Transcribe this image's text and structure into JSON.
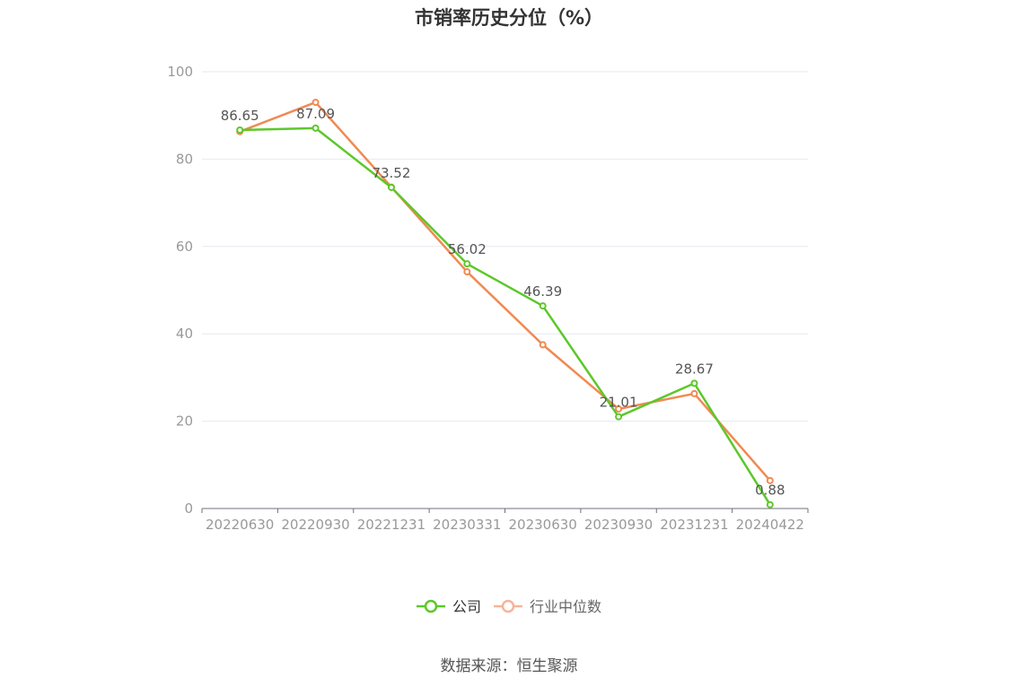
{
  "title": "市销率历史分位（%）",
  "source": "数据来源：恒生聚源",
  "colors": {
    "company": "#5cc82a",
    "industry": "#f08a52",
    "industry_legend": "#f5b59a",
    "grid": "#e6e9f0",
    "axis": "#6e7079",
    "tick_text": "#999999",
    "label_text": "#555555"
  },
  "chart_data": {
    "type": "line",
    "categories": [
      "20220630",
      "20220930",
      "20221231",
      "20230331",
      "20230630",
      "20230930",
      "20231231",
      "20240422"
    ],
    "ylim": [
      0,
      100
    ],
    "yticks": [
      0,
      20,
      40,
      60,
      80,
      100
    ],
    "grid": true,
    "legend_position": "bottom",
    "series": [
      {
        "name": "公司",
        "values": [
          86.65,
          87.09,
          73.52,
          56.02,
          46.39,
          21.01,
          28.67,
          0.88
        ],
        "labels": [
          "86.65",
          "87.09",
          "73.52",
          "56.02",
          "46.39",
          "21.01",
          "28.67",
          "0.88"
        ]
      },
      {
        "name": "行业中位数",
        "values": [
          86.3,
          93.0,
          73.6,
          54.2,
          37.5,
          22.8,
          26.3,
          6.4
        ]
      }
    ]
  }
}
